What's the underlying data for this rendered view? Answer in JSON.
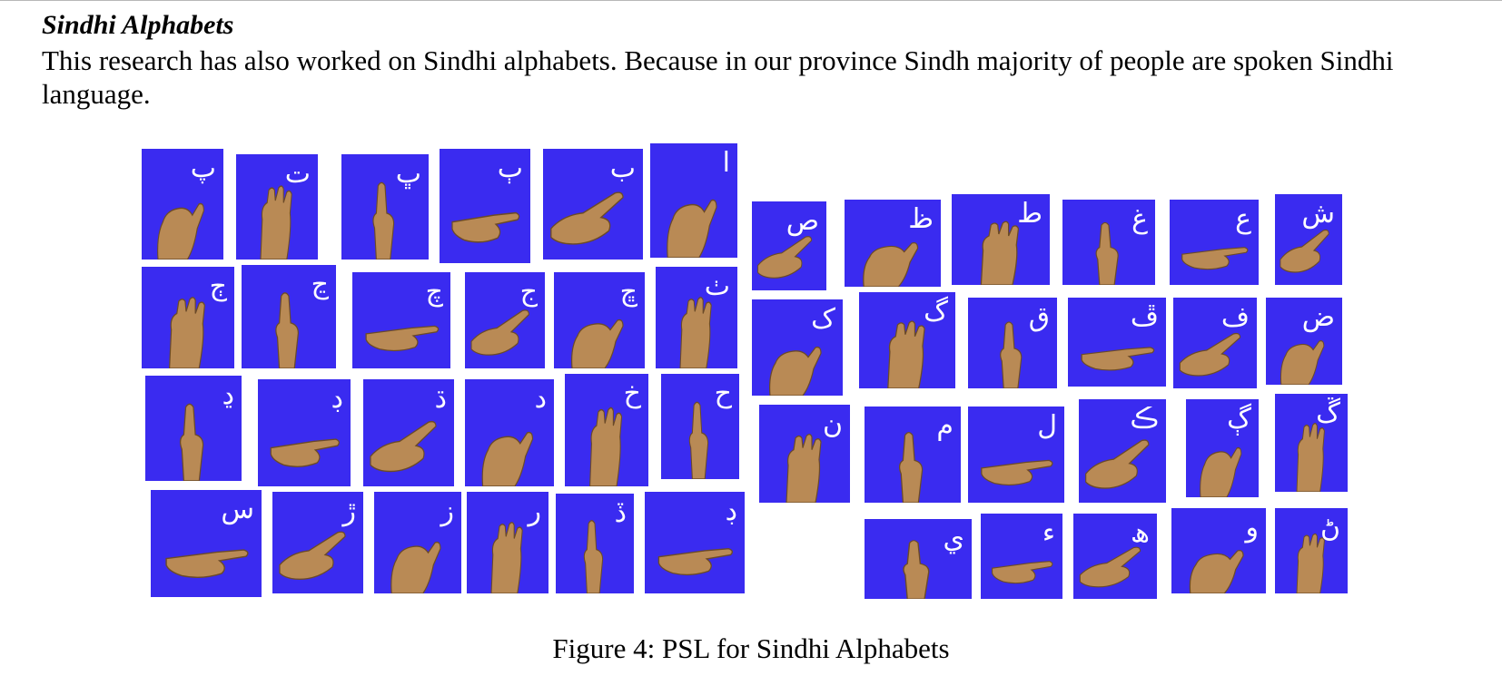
{
  "section": {
    "heading": "Sindhi Alphabets",
    "paragraph": "This research has also worked on Sindhi alphabets. Because in our province Sindh majority of people are spoken Sindhi language."
  },
  "figure": {
    "caption": "Figure 4: PSL for Sindhi Alphabets",
    "tile_color": "#3a2bf0",
    "hand_color": "#b98a55",
    "letters": [
      "پ",
      "ت",
      "ڀ",
      "ٻ",
      "ب",
      "ا",
      "ڄ",
      "ڃ",
      "چ",
      "ج",
      "ڇ",
      "ٺ",
      "ڍ",
      "ڊ",
      "ڌ",
      "د",
      "خ",
      "ح",
      "س",
      "ڙ",
      "ز",
      "ر",
      "ڏ",
      "ڊ",
      "ص",
      "ظ",
      "ط",
      "غ",
      "ع",
      "ش",
      "ک",
      "گ",
      "ق",
      "ڦ",
      "ف",
      "ض",
      "ن",
      "م",
      "ل",
      "ڪ",
      "ڳ",
      "ڱ",
      "ي",
      "ء",
      "ھ",
      "و",
      "ڻ"
    ]
  }
}
